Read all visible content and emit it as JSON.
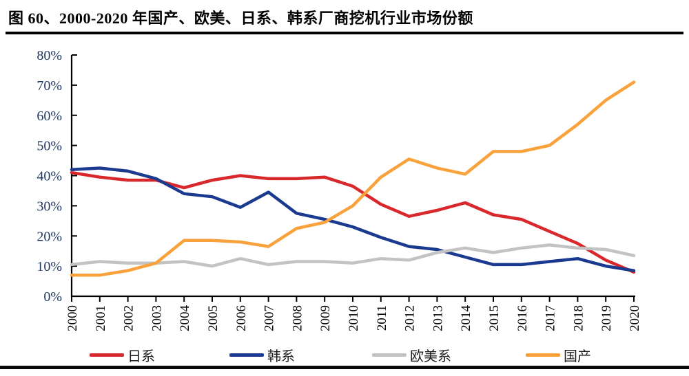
{
  "page": {
    "title": "图 60、2000-2020 年国产、欧美、日系、韩系厂商挖机行业市场份额"
  },
  "chart_data": {
    "type": "line",
    "title": "图 60、2000-2020 年国产、欧美、日系、韩系厂商挖机行业市场份额",
    "categories": [
      "2000",
      "2001",
      "2002",
      "2003",
      "2004",
      "2005",
      "2006",
      "2007",
      "2008",
      "2009",
      "2010",
      "2011",
      "2012",
      "2013",
      "2014",
      "2015",
      "2016",
      "2017",
      "2018",
      "2019",
      "2020"
    ],
    "series": [
      {
        "name": "日系",
        "key": "japanese",
        "color": "#d9282c",
        "values": [
          41,
          39.5,
          38.5,
          38.5,
          36,
          38.5,
          40,
          39,
          39,
          39.5,
          36.5,
          30.5,
          26.5,
          28.5,
          31,
          27,
          25.5,
          21.5,
          17.5,
          12,
          8
        ]
      },
      {
        "name": "韩系",
        "key": "korean",
        "color": "#1a3a8f",
        "values": [
          42,
          42.5,
          41.5,
          39,
          34,
          33,
          29.5,
          34.5,
          27.5,
          25.5,
          23,
          19.5,
          16.5,
          15.5,
          13,
          10.5,
          10.5,
          11.5,
          12.5,
          10,
          8.5
        ]
      },
      {
        "name": "欧美系",
        "key": "euro-american",
        "color": "#c3c3c3",
        "values": [
          10.5,
          11.5,
          11,
          11,
          11.5,
          10,
          12.5,
          10.5,
          11.5,
          11.5,
          11,
          12.5,
          12,
          14.5,
          16,
          14.5,
          16,
          17,
          16,
          15.5,
          13.5
        ]
      },
      {
        "name": "国产",
        "key": "domestic",
        "color": "#f9a23c",
        "values": [
          7,
          7,
          8.5,
          11,
          18.5,
          18.5,
          18,
          16.5,
          22.5,
          24.5,
          30,
          39.5,
          45.5,
          42.5,
          40.5,
          48,
          48,
          50,
          57,
          65,
          71
        ]
      }
    ],
    "xlabel": "",
    "ylabel": "",
    "ylim": [
      0,
      80
    ],
    "ytick_step": 10,
    "ytick_labels": [
      "0%",
      "10%",
      "20%",
      "30%",
      "40%",
      "50%",
      "60%",
      "70%",
      "80%"
    ],
    "grid": false,
    "legend_position": "bottom",
    "axis_color": "#000000",
    "ytick_label_color": "#1f3864",
    "xtick_label_color": "#000000",
    "x_labels_rotated": true
  }
}
